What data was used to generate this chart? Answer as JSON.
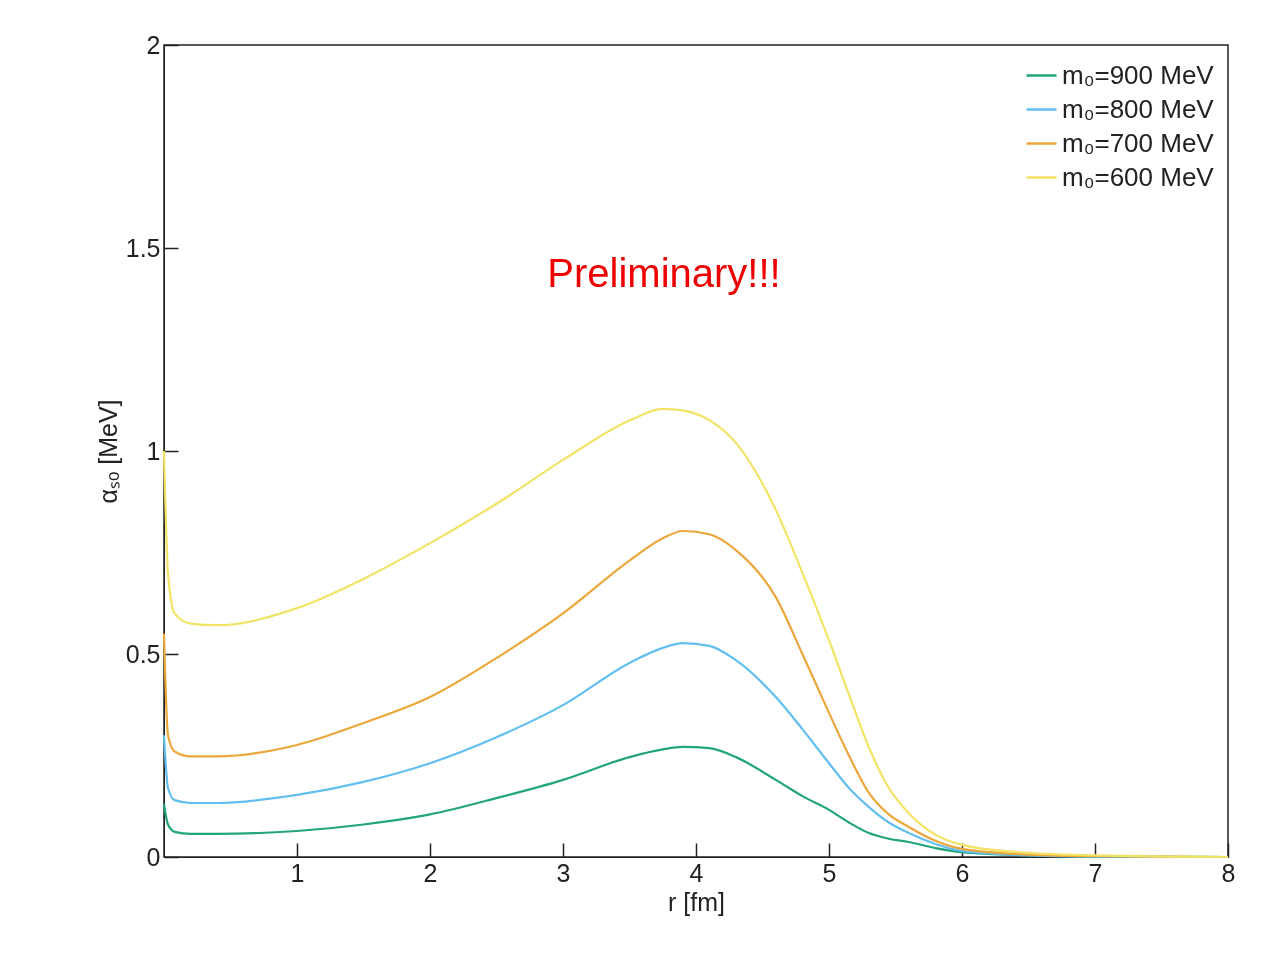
{
  "chart_data": {
    "type": "line",
    "xlabel": "r [fm]",
    "ylabel": "αₛₒ [MeV]",
    "xlim": [
      0,
      8
    ],
    "xticks": [
      1,
      2,
      3,
      4,
      5,
      6,
      7,
      8
    ],
    "ylim": [
      0,
      2
    ],
    "yticks": [
      0,
      0.5,
      1,
      1.5,
      2
    ],
    "grid": false,
    "legend": "top right",
    "marker": "none",
    "line_style": "solid",
    "annotations": [
      "Preliminary!!!"
    ],
    "x": [
      0,
      0.03,
      0.08,
      0.2,
      0.4,
      1,
      1.5,
      2,
      2.5,
      3,
      3.5,
      3.75,
      3.9,
      4.1,
      4.3,
      4.6,
      4.8,
      5,
      5.15,
      5.3,
      5.45,
      5.6,
      5.8,
      6,
      6.5,
      7,
      8
    ],
    "series": [
      {
        "name": "m₀=900 MeV",
        "color": "#22a47c",
        "values": [
          0.13,
          0.08,
          0.062,
          0.057,
          0.057,
          0.064,
          0.08,
          0.105,
          0.145,
          0.19,
          0.246,
          0.265,
          0.271,
          0.268,
          0.246,
          0.19,
          0.15,
          0.116,
          0.085,
          0.059,
          0.045,
          0.037,
          0.022,
          0.012,
          0.004,
          0.001,
          0
        ]
      },
      {
        "name": "m₀=800 MeV",
        "color": "#62bff0",
        "values": [
          0.3,
          0.17,
          0.14,
          0.133,
          0.133,
          0.153,
          0.185,
          0.231,
          0.295,
          0.374,
          0.478,
          0.515,
          0.527,
          0.52,
          0.485,
          0.394,
          0.315,
          0.231,
          0.17,
          0.123,
          0.085,
          0.059,
          0.032,
          0.015,
          0.004,
          0.001,
          0
        ]
      },
      {
        "name": "m₀=700 MeV",
        "color": "#eba73a",
        "values": [
          0.55,
          0.3,
          0.26,
          0.248,
          0.248,
          0.276,
          0.33,
          0.394,
          0.49,
          0.6,
          0.73,
          0.785,
          0.803,
          0.795,
          0.756,
          0.64,
          0.5,
          0.355,
          0.25,
          0.158,
          0.105,
          0.074,
          0.04,
          0.02,
          0.006,
          0.002,
          0
        ]
      },
      {
        "name": "m₀=600 MeV",
        "color": "#f3e365",
        "values": [
          1.0,
          0.7,
          0.6,
          0.575,
          0.571,
          0.613,
          0.685,
          0.773,
          0.87,
          0.978,
          1.075,
          1.104,
          1.1,
          1.076,
          1.02,
          0.855,
          0.7,
          0.534,
          0.4,
          0.27,
          0.17,
          0.108,
          0.055,
          0.03,
          0.01,
          0.004,
          0
        ]
      }
    ]
  }
}
